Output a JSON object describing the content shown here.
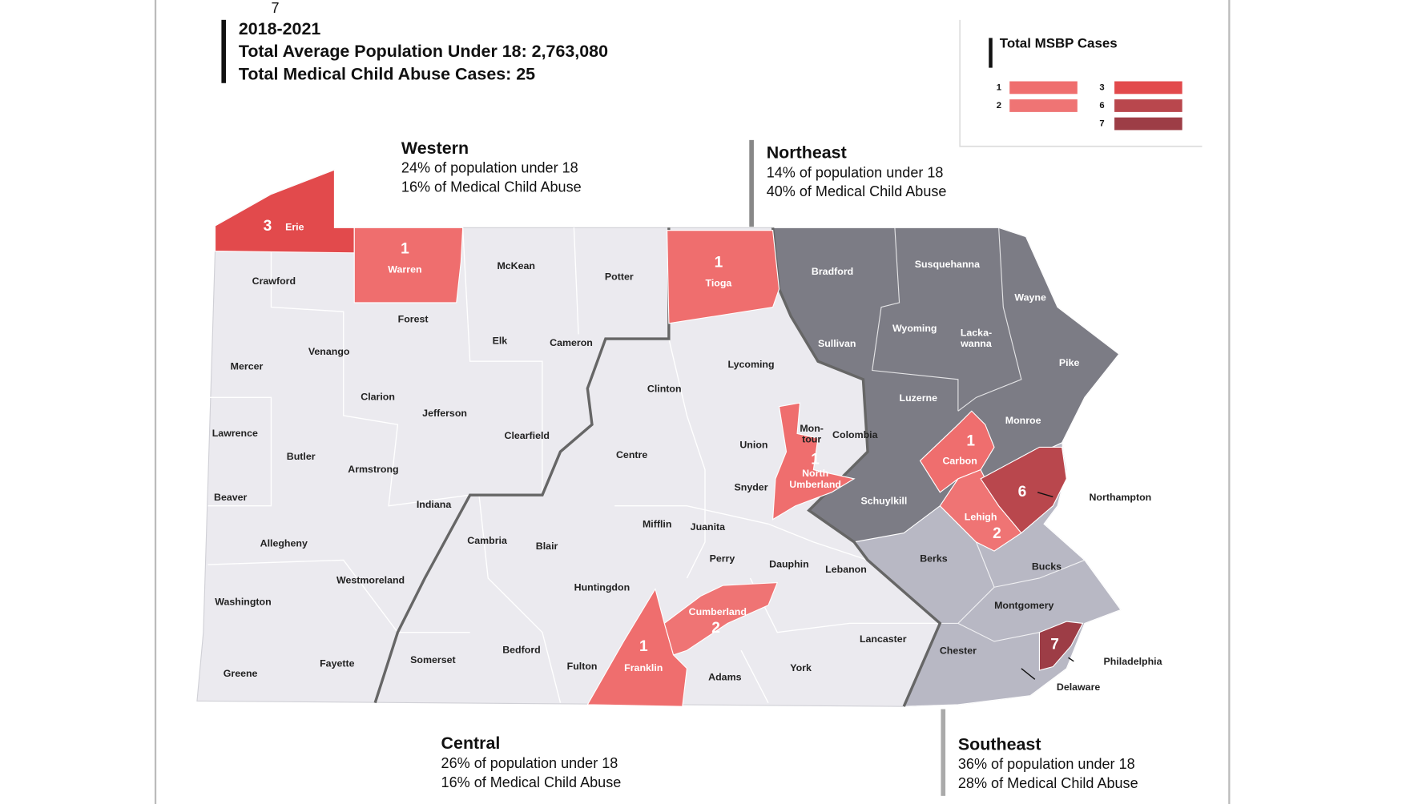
{
  "header": {
    "period": "2018-2021",
    "correction": "7",
    "population": "Total Average Population Under 18: 2,763,080",
    "cases": "Total Medical Child Abuse Cases: 25"
  },
  "legend": {
    "title": "Total MSBP Cases",
    "entries": [
      {
        "value": 1,
        "color": "#ef6e6e"
      },
      {
        "value": 2,
        "color": "#ef7474"
      },
      {
        "value": 3,
        "color": "#e24a4c"
      },
      {
        "value": 6,
        "color": "#b9474d"
      },
      {
        "value": 7,
        "color": "#9d3d46"
      }
    ]
  },
  "regions": [
    {
      "name": "Western",
      "population": "24% of population under 18",
      "abuse": "16% of Medical Child Abuse"
    },
    {
      "name": "Northeast",
      "population": "14% of population under 18",
      "abuse": "40% of Medical Child Abuse"
    },
    {
      "name": "Central",
      "population": "26% of population under 18",
      "abuse": "16% of Medical Child Abuse"
    },
    {
      "name": "Southeast",
      "population": "36% of population under 18",
      "abuse": "28% of Medical Child Abuse"
    }
  ],
  "counties": [
    {
      "name": "Erie",
      "cases": 3
    },
    {
      "name": "Warren",
      "cases": 1
    },
    {
      "name": "Tioga",
      "cases": 1
    },
    {
      "name": [
        "North",
        "Umberland"
      ],
      "cases": 1
    },
    {
      "name": "Carbon",
      "cases": 1
    },
    {
      "name": "Lehigh",
      "cases": 2
    },
    {
      "name": "Northampton",
      "cases": 6
    },
    {
      "name": "Cumberland",
      "cases": 2
    },
    {
      "name": "Franklin",
      "cases": 1
    },
    {
      "name": "Philadelphia",
      "cases": 7
    },
    {
      "name": "Crawford"
    },
    {
      "name": "McKean"
    },
    {
      "name": "Potter"
    },
    {
      "name": "Bradford"
    },
    {
      "name": "Susquehanna"
    },
    {
      "name": "Wayne"
    },
    {
      "name": "Forest"
    },
    {
      "name": "Elk"
    },
    {
      "name": "Cameron"
    },
    {
      "name": "Venango"
    },
    {
      "name": "Mercer"
    },
    {
      "name": "Lycoming"
    },
    {
      "name": "Wyoming"
    },
    {
      "name": [
        "Lacka-",
        "wanna"
      ]
    },
    {
      "name": "Sullivan"
    },
    {
      "name": "Pike"
    },
    {
      "name": "Clarion"
    },
    {
      "name": "Clinton"
    },
    {
      "name": "Luzerne"
    },
    {
      "name": "Jefferson"
    },
    {
      "name": "Lawrence"
    },
    {
      "name": "Clearfield"
    },
    {
      "name": [
        "Mon-",
        "tour"
      ]
    },
    {
      "name": "Colombia"
    },
    {
      "name": "Union"
    },
    {
      "name": "Monroe"
    },
    {
      "name": "Butler"
    },
    {
      "name": "Centre"
    },
    {
      "name": "Armstrong"
    },
    {
      "name": "Snyder"
    },
    {
      "name": "Beaver"
    },
    {
      "name": "Schuylkill"
    },
    {
      "name": "Indiana"
    },
    {
      "name": "Mifflin"
    },
    {
      "name": "Juanita"
    },
    {
      "name": "Cambria"
    },
    {
      "name": "Allegheny"
    },
    {
      "name": "Blair"
    },
    {
      "name": "Perry"
    },
    {
      "name": "Berks"
    },
    {
      "name": "Bucks"
    },
    {
      "name": "Dauphin"
    },
    {
      "name": "Lebanon"
    },
    {
      "name": "Westmoreland"
    },
    {
      "name": "Huntingdon"
    },
    {
      "name": "Washington"
    },
    {
      "name": "Montgomery"
    },
    {
      "name": "Lancaster"
    },
    {
      "name": "Bedford"
    },
    {
      "name": "Chester"
    },
    {
      "name": "Somerset"
    },
    {
      "name": "Fayette"
    },
    {
      "name": "Fulton"
    },
    {
      "name": "Adams"
    },
    {
      "name": "York"
    },
    {
      "name": "Greene"
    },
    {
      "name": "Delaware"
    }
  ]
}
